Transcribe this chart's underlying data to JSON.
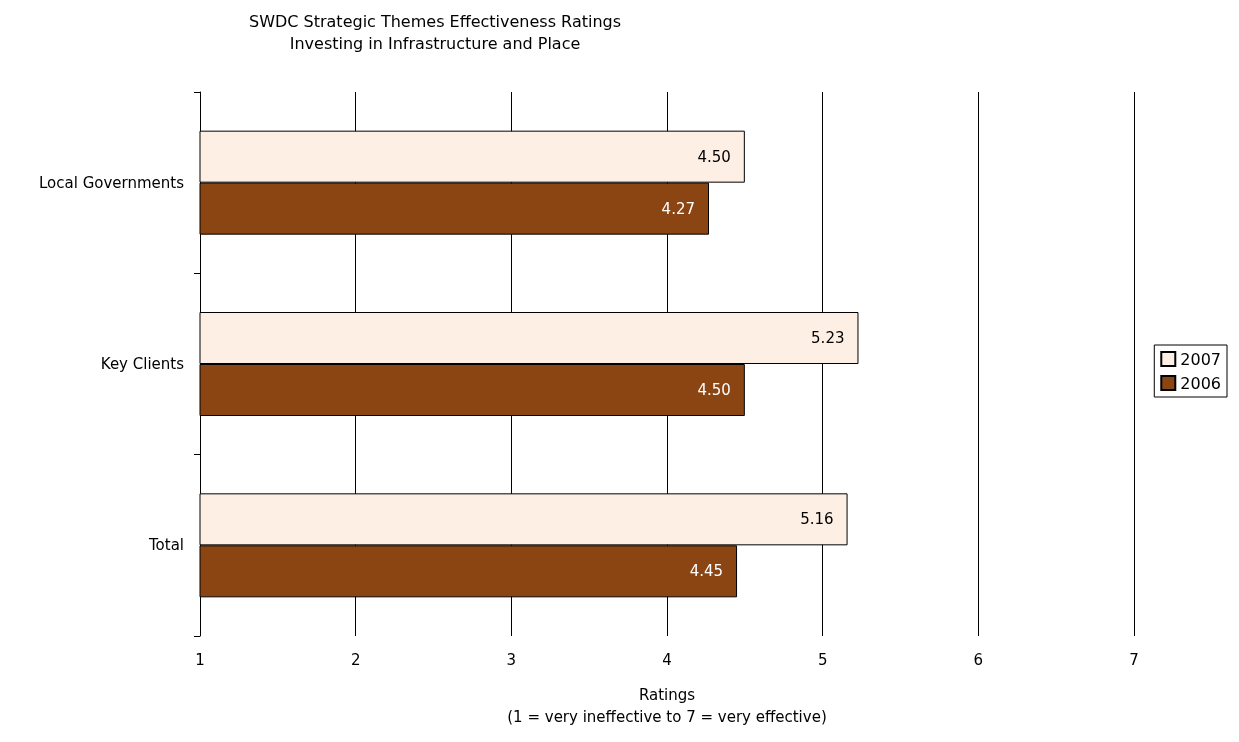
{
  "chart_data": {
    "type": "bar",
    "orientation": "horizontal",
    "title": "SWDC Strategic Themes Effectiveness Ratings",
    "subtitle": "Investing in Infrastructure and Place",
    "xlabel": "Ratings\n(1 = very ineffective to 7 = very effective)",
    "categories": [
      "Local Governments",
      "Key Clients",
      "Total"
    ],
    "series": [
      {
        "name": "2007",
        "color": "#fdefe4",
        "values": [
          4.5,
          5.23,
          5.16
        ],
        "value_labels": [
          "4.50",
          "5.23",
          "5.16"
        ]
      },
      {
        "name": "2006",
        "color": "#8b4513",
        "values": [
          4.27,
          4.5,
          4.45
        ],
        "value_labels": [
          "4.27",
          "4.50",
          "4.45"
        ]
      }
    ],
    "xlim": [
      1,
      7
    ],
    "xticks": [
      1,
      2,
      3,
      4,
      5,
      6,
      7
    ],
    "grid": "x",
    "legend": "right"
  }
}
